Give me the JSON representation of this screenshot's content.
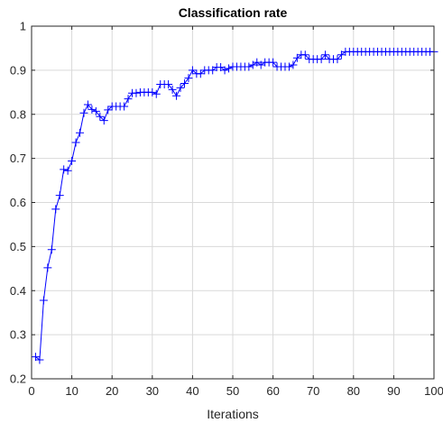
{
  "chart_data": {
    "type": "line",
    "title": "Classification rate",
    "xlabel": "Iterations",
    "ylabel": "",
    "xlim": [
      0,
      100
    ],
    "ylim": [
      0.2,
      1
    ],
    "x_ticks": [
      "0",
      "10",
      "20",
      "30",
      "40",
      "50",
      "60",
      "70",
      "80",
      "90",
      "100"
    ],
    "y_ticks": [
      "0.2",
      "0.3",
      "0.4",
      "0.5",
      "0.6",
      "0.7",
      "0.8",
      "0.9",
      "1"
    ],
    "grid": true,
    "legend": "none",
    "marker": "+",
    "line_color": "#0000ff",
    "series": [
      {
        "x": [
          1,
          2,
          3,
          4,
          5,
          6,
          7,
          8,
          9,
          10,
          11,
          12,
          13,
          14,
          15,
          16,
          17,
          18,
          19,
          20,
          21,
          22,
          23,
          24,
          25,
          26,
          27,
          28,
          29,
          30,
          31,
          32,
          33,
          34,
          35,
          36,
          37,
          38,
          39,
          40,
          41,
          42,
          43,
          44,
          45,
          46,
          47,
          48,
          49,
          50,
          51,
          52,
          53,
          54,
          55,
          56,
          57,
          58,
          59,
          60,
          61,
          62,
          63,
          64,
          65,
          66,
          67,
          68,
          69,
          70,
          71,
          72,
          73,
          74,
          75,
          76,
          77,
          78,
          79,
          80,
          81,
          82,
          83,
          84,
          85,
          86,
          87,
          88,
          89,
          90,
          91,
          92,
          93,
          94,
          95,
          96,
          97,
          98,
          99,
          100
        ],
        "values": [
          0.25,
          0.243,
          0.378,
          0.452,
          0.493,
          0.585,
          0.616,
          0.675,
          0.672,
          0.694,
          0.736,
          0.758,
          0.803,
          0.822,
          0.811,
          0.807,
          0.795,
          0.786,
          0.81,
          0.818,
          0.818,
          0.818,
          0.818,
          0.835,
          0.848,
          0.848,
          0.85,
          0.85,
          0.85,
          0.85,
          0.846,
          0.868,
          0.868,
          0.868,
          0.856,
          0.842,
          0.86,
          0.87,
          0.882,
          0.9,
          0.892,
          0.892,
          0.9,
          0.9,
          0.9,
          0.907,
          0.907,
          0.9,
          0.904,
          0.908,
          0.908,
          0.908,
          0.908,
          0.908,
          0.912,
          0.918,
          0.912,
          0.918,
          0.918,
          0.918,
          0.908,
          0.908,
          0.908,
          0.908,
          0.912,
          0.928,
          0.935,
          0.935,
          0.925,
          0.925,
          0.925,
          0.925,
          0.935,
          0.925,
          0.925,
          0.925,
          0.935,
          0.942,
          0.942,
          0.942,
          0.942,
          0.942,
          0.942,
          0.942,
          0.942,
          0.942,
          0.942,
          0.942,
          0.942,
          0.942,
          0.942,
          0.942,
          0.942,
          0.942,
          0.942,
          0.942,
          0.942,
          0.942,
          0.942,
          0.942
        ]
      }
    ]
  }
}
